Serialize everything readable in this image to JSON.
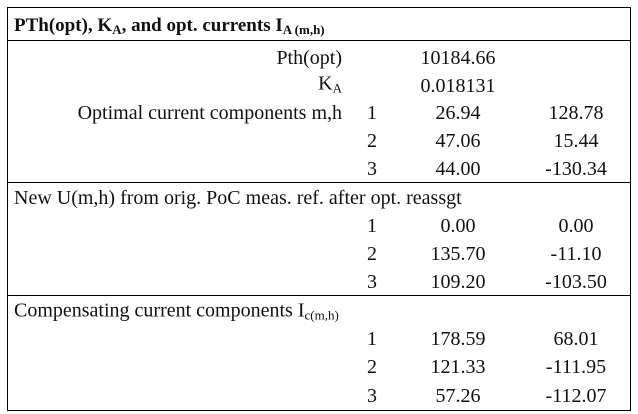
{
  "title": {
    "parts": [
      "PTh(opt), K",
      "A",
      ", and opt. currents I",
      "A (m,h)"
    ]
  },
  "sections": [
    {
      "rows": [
        {
          "label": [
            "Pth(opt)"
          ],
          "values": [
            "10184.66"
          ]
        },
        {
          "label": [
            "K",
            "A"
          ],
          "values": [
            "0.018131"
          ]
        },
        {
          "label": [
            "Optimal current components m,h"
          ],
          "index": "1",
          "values": [
            "26.94",
            "128.78"
          ]
        },
        {
          "index": "2",
          "values": [
            "47.06",
            "15.44"
          ]
        },
        {
          "index": "3",
          "values": [
            "44.00",
            "-130.34"
          ]
        }
      ]
    },
    {
      "rows": [
        {
          "label": [
            "New U(m,h) from orig. PoC meas. ref. after opt. reassgt"
          ]
        },
        {
          "index": "1",
          "values": [
            "0.00",
            "0.00"
          ]
        },
        {
          "index": "2",
          "values": [
            "135.70",
            "-11.10"
          ]
        },
        {
          "index": "3",
          "values": [
            "109.20",
            "-103.50"
          ]
        }
      ]
    },
    {
      "rows": [
        {
          "label": [
            "Compensating current components I",
            "c(m,h)"
          ]
        },
        {
          "index": "1",
          "values": [
            "178.59",
            "68.01"
          ]
        },
        {
          "index": "2",
          "values": [
            "121.33",
            "-111.95"
          ]
        },
        {
          "index": "3",
          "values": [
            "57.26",
            "-112.07"
          ]
        }
      ]
    }
  ]
}
